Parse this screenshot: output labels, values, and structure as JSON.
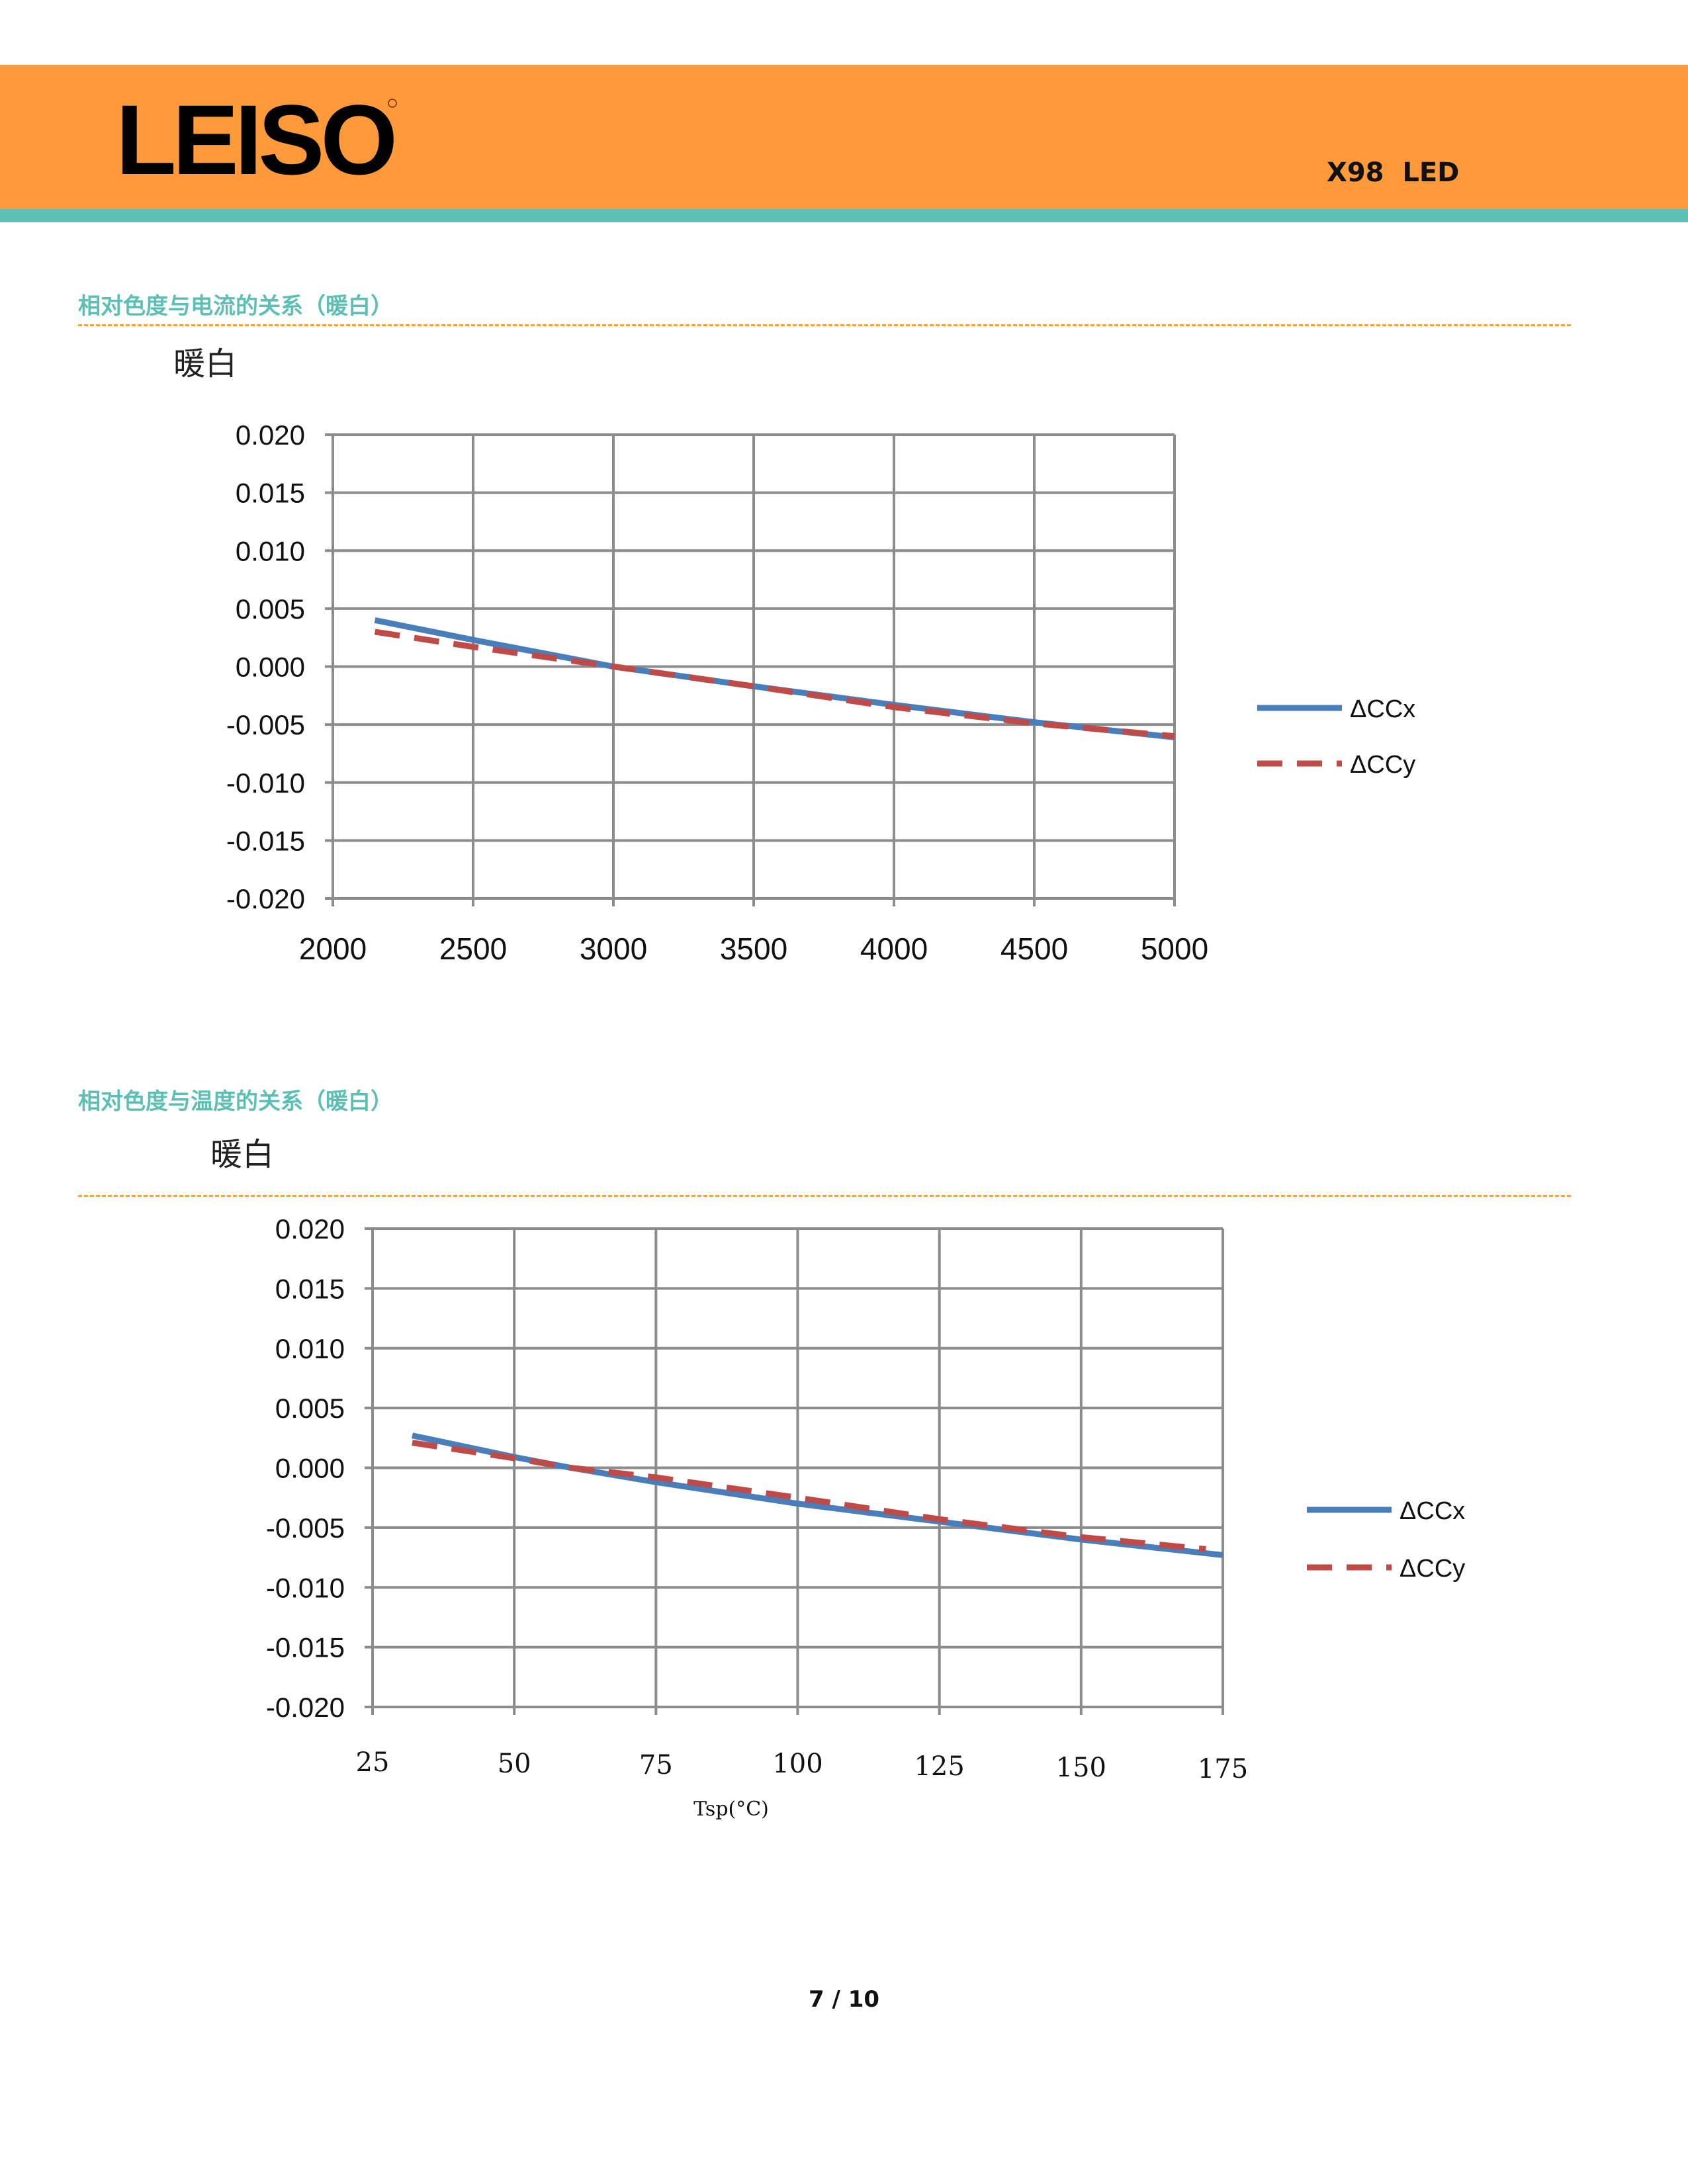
{
  "header": {
    "logo_text": "LEISO",
    "model": "X98  LED",
    "colors": {
      "band": "#ff9a3a",
      "strip": "#5cc0b5",
      "section_title": "#5cbfb4",
      "dash": "#f5a23a"
    }
  },
  "sections": [
    {
      "title": "相对色度与电流的关系（暖白）"
    },
    {
      "title": "相对色度与温度的关系（暖白）"
    }
  ],
  "chart_data": [
    {
      "type": "line",
      "title": "暖白",
      "xlabel": "",
      "ylabel": "",
      "xlim": [
        2000,
        5000
      ],
      "ylim": [
        -0.02,
        0.02
      ],
      "xticks": [
        "2000",
        "2500",
        "3000",
        "3500",
        "4000",
        "4500",
        "5000"
      ],
      "yticks": [
        "0.020",
        "0.015",
        "0.010",
        "0.005",
        "0.000",
        "-0.005",
        "-0.010",
        "-0.015",
        "-0.020"
      ],
      "grid": true,
      "legend": "right",
      "series": [
        {
          "name": "ΔCCx",
          "color": "#4a7ebb",
          "style": "solid",
          "x": [
            2150,
            2500,
            3000,
            3500,
            4000,
            4500,
            5000
          ],
          "y": [
            0.004,
            0.0023,
            0.0,
            -0.0017,
            -0.0033,
            -0.0048,
            -0.0061
          ]
        },
        {
          "name": "ΔCCy",
          "color": "#be4b48",
          "style": "dashed",
          "x": [
            2150,
            2500,
            3000,
            3500,
            4000,
            4500,
            5000
          ],
          "y": [
            0.003,
            0.0017,
            0.0,
            -0.0017,
            -0.0035,
            -0.0049,
            -0.006
          ]
        }
      ]
    },
    {
      "type": "line",
      "title": "暖白",
      "xlabel": "Tsp(°C)",
      "ylabel": "",
      "xlim": [
        25,
        175
      ],
      "ylim": [
        -0.02,
        0.02
      ],
      "xticks": [
        "25",
        "50",
        "75",
        "100",
        "125",
        "150",
        "175"
      ],
      "yticks": [
        "0.020",
        "0.015",
        "0.010",
        "0.005",
        "0.000",
        "-0.005",
        "-0.010",
        "-0.015",
        "-0.020"
      ],
      "grid": true,
      "legend": "right",
      "series": [
        {
          "name": "ΔCCx",
          "color": "#4a7ebb",
          "style": "solid",
          "x": [
            32,
            50,
            60,
            75,
            100,
            125,
            150,
            175
          ],
          "y": [
            0.0027,
            0.0009,
            0.0,
            -0.0012,
            -0.003,
            -0.0045,
            -0.006,
            -0.0073
          ]
        },
        {
          "name": "ΔCCy",
          "color": "#be4b48",
          "style": "dashed",
          "x": [
            32,
            50,
            60,
            75,
            100,
            125,
            150,
            172
          ],
          "y": [
            0.0021,
            0.0008,
            0.0,
            -0.0008,
            -0.0025,
            -0.0043,
            -0.0058,
            -0.0068
          ]
        }
      ]
    }
  ],
  "footer": {
    "page": "7 / 10"
  }
}
